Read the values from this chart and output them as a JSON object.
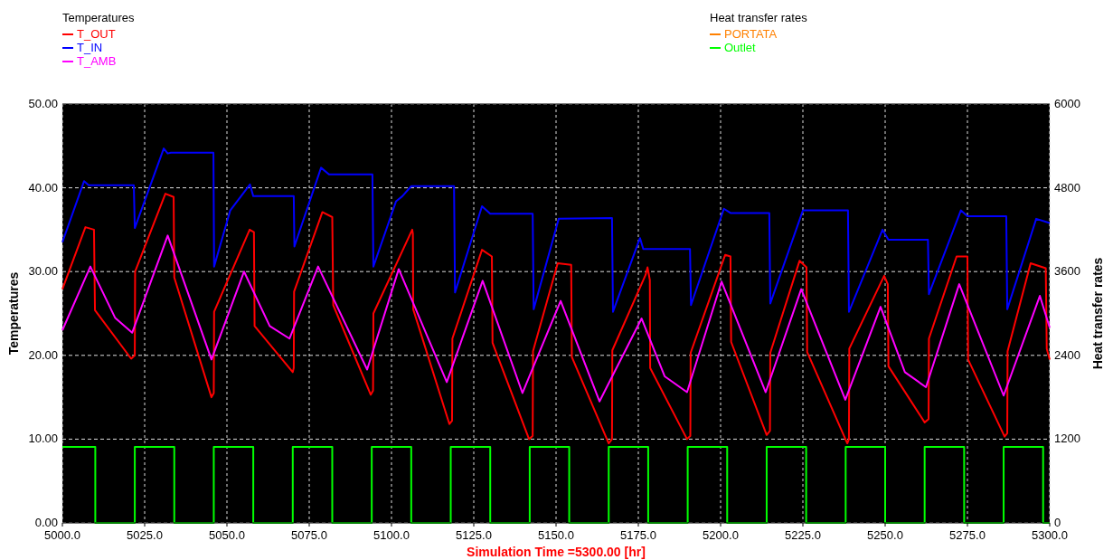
{
  "chart_data": {
    "type": "line",
    "xlabel": "Simulation Time =5300.00 [hr]",
    "ylabel": "Temperatures",
    "y2label": "Heat transfer rates",
    "legend_title": "Temperatures",
    "annotations": [
      "Heat transfer rates"
    ],
    "legend": "top",
    "grid": true,
    "marker": "none",
    "line_style": "solid",
    "xlim": [
      5000,
      5300
    ],
    "xticks": [
      {
        "value": 5000,
        "label": "5000.0"
      },
      {
        "value": 5025,
        "label": "5025.0"
      },
      {
        "value": 5050,
        "label": "5050.0"
      },
      {
        "value": 5075,
        "label": "5075.0"
      },
      {
        "value": 5100,
        "label": "5100.0"
      },
      {
        "value": 5125,
        "label": "5125.0"
      },
      {
        "value": 5150,
        "label": "5150.0"
      },
      {
        "value": 5175,
        "label": "5175.0"
      },
      {
        "value": 5200,
        "label": "5200.0"
      },
      {
        "value": 5225,
        "label": "5225.0"
      },
      {
        "value": 5250,
        "label": "5250.0"
      },
      {
        "value": 5275,
        "label": "5275.0"
      },
      {
        "value": 5300,
        "label": "5300.0"
      }
    ],
    "ylim": [
      0,
      50
    ],
    "yticks": [
      {
        "value": 0,
        "label": "0.00"
      },
      {
        "value": 10,
        "label": "10.00"
      },
      {
        "value": 20,
        "label": "20.00"
      },
      {
        "value": 30,
        "label": "30.00"
      },
      {
        "value": 40,
        "label": "40.00"
      },
      {
        "value": 50,
        "label": "50.00"
      }
    ],
    "y2lim": [
      0,
      6000
    ],
    "y2ticks": [
      0,
      1200,
      2400,
      3600,
      4800,
      6000
    ],
    "series": [
      {
        "name": "T_OUT",
        "color": "#ff0000",
        "x": [
          5000,
          5007,
          5009.6,
          5009.9,
          5020.9,
          5022,
          5022.1,
          5031.3,
          5033.8,
          5034,
          5045.3,
          5046,
          5046.1,
          5056.9,
          5058.2,
          5058.4,
          5070,
          5070.3,
          5070.4,
          5079,
          5082,
          5082.3,
          5093.7,
          5094.4,
          5094.5,
          5106.3,
          5106.5,
          5106.6,
          5117.6,
          5118.4,
          5118.5,
          5127.5,
          5130.5,
          5130.7,
          5141.8,
          5142.9,
          5143,
          5150.5,
          5154.6,
          5154.8,
          5166,
          5167,
          5167.1,
          5177.2,
          5177.8,
          5178.5,
          5178.6,
          5189.8,
          5190.8,
          5190.9,
          5201.4,
          5203,
          5203.2,
          5214,
          5215,
          5215.1,
          5224,
          5226.1,
          5226.3,
          5238.5,
          5239,
          5239.1,
          5249.7,
          5250.8,
          5251,
          5262,
          5263.2,
          5263.3,
          5271.7,
          5275,
          5275.2,
          5286.3,
          5287.1,
          5287.2,
          5294.2,
          5298.8,
          5299.1,
          5300
        ],
        "values": [
          27.9,
          35.3,
          35,
          25.4,
          19.6,
          20,
          30,
          39.3,
          38.9,
          29.3,
          15,
          15.5,
          25.2,
          35,
          34.7,
          23.5,
          18,
          18.5,
          27.6,
          37.1,
          36.5,
          26,
          15.3,
          15.8,
          25,
          35,
          34.5,
          25.5,
          11.8,
          12.2,
          22,
          32.6,
          31.8,
          21.5,
          10,
          10.4,
          20.5,
          31,
          30.8,
          19.8,
          9.5,
          10,
          20.6,
          29.6,
          30.5,
          29,
          18.5,
          10,
          10.4,
          20.3,
          32,
          31.8,
          21.6,
          10.5,
          11,
          20.3,
          31.3,
          30.5,
          20.4,
          9.5,
          10,
          20.8,
          29.5,
          28.5,
          18.7,
          12,
          12.4,
          22,
          31.8,
          31.8,
          19.5,
          10.3,
          10.7,
          20.5,
          31,
          30.4,
          20.8,
          19.5
        ]
      },
      {
        "name": "T_IN",
        "color": "#0000ff",
        "x": [
          5000,
          5006.6,
          5008,
          5021.7,
          5022,
          5030.8,
          5032,
          5033,
          5045.9,
          5046.1,
          5051,
          5057,
          5058,
          5070.3,
          5070.5,
          5078.6,
          5081,
          5094.2,
          5094.5,
          5101.4,
          5103.3,
          5106,
          5119,
          5119.3,
          5127.5,
          5130,
          5142.9,
          5143.2,
          5150.8,
          5167,
          5167.3,
          5175.5,
          5176.5,
          5190.7,
          5191,
          5201,
          5203,
          5214.8,
          5215.1,
          5225,
          5238.7,
          5239,
          5249.2,
          5251,
          5263,
          5263.3,
          5273,
          5275,
          5286.8,
          5287.1,
          5295.9,
          5300
        ],
        "values": [
          33.5,
          40.8,
          40.3,
          40.3,
          35.2,
          44.7,
          44.1,
          44.2,
          44.2,
          30.6,
          37.3,
          40.4,
          39,
          39,
          33,
          42.4,
          41.6,
          41.6,
          30.6,
          38.4,
          39,
          40.2,
          40.2,
          27.5,
          37.8,
          36.9,
          36.9,
          25.5,
          36.3,
          36.4,
          25.2,
          34,
          32.7,
          32.7,
          26,
          37.5,
          37,
          37,
          26.2,
          37.3,
          37.3,
          25.2,
          35,
          33.8,
          33.8,
          27.3,
          37.3,
          36.6,
          36.6,
          25.5,
          36.3,
          35.8
        ]
      },
      {
        "name": "T_AMB",
        "color": "#ff00ff",
        "x": [
          5000,
          5008.5,
          5016,
          5021.2,
          5032,
          5045.3,
          5055.2,
          5063,
          5069,
          5077.7,
          5092.6,
          5102.2,
          5116.8,
          5127.7,
          5139.8,
          5151.4,
          5163.2,
          5176,
          5183,
          5189.8,
          5200.3,
          5213.7,
          5224.5,
          5237.9,
          5248.6,
          5256,
          5262.4,
          5272.5,
          5286,
          5297,
          5300
        ],
        "values": [
          23,
          30.6,
          24.5,
          22.7,
          34.3,
          19.5,
          30,
          23.5,
          22,
          30.6,
          18.3,
          30.3,
          16.8,
          28.9,
          15.5,
          26.5,
          14.5,
          24.4,
          17.5,
          15.6,
          28.8,
          15.6,
          27.9,
          14.7,
          25.8,
          18,
          16.2,
          28.5,
          15.2,
          27.1,
          23.3
        ]
      },
      {
        "name": "PORTATA",
        "color": "#ff8000",
        "axis": "y2"
      },
      {
        "name": "Outlet",
        "color": "#00ff00",
        "axis": "y2",
        "x": [
          5000,
          5010,
          5010,
          5022,
          5022,
          5034,
          5034,
          5046,
          5046,
          5058,
          5058,
          5070,
          5070,
          5082,
          5082,
          5094,
          5094,
          5106,
          5106,
          5118,
          5118,
          5130,
          5130,
          5142,
          5142,
          5154,
          5154,
          5166,
          5166,
          5178,
          5178,
          5190,
          5190,
          5202,
          5202,
          5214,
          5214,
          5226,
          5226,
          5238,
          5238,
          5250,
          5250,
          5262,
          5262,
          5274,
          5274,
          5286,
          5286,
          5298,
          5298,
          5300
        ],
        "values": [
          1090,
          1090,
          0,
          0,
          1090,
          1090,
          0,
          0,
          1090,
          1090,
          0,
          0,
          1090,
          1090,
          0,
          0,
          1090,
          1090,
          0,
          0,
          1090,
          1090,
          0,
          0,
          1090,
          1090,
          0,
          0,
          1090,
          1090,
          0,
          0,
          1090,
          1090,
          0,
          0,
          1090,
          1090,
          0,
          0,
          1090,
          1090,
          0,
          0,
          1090,
          1090,
          0,
          0,
          1090,
          1090,
          0,
          0
        ]
      }
    ]
  }
}
